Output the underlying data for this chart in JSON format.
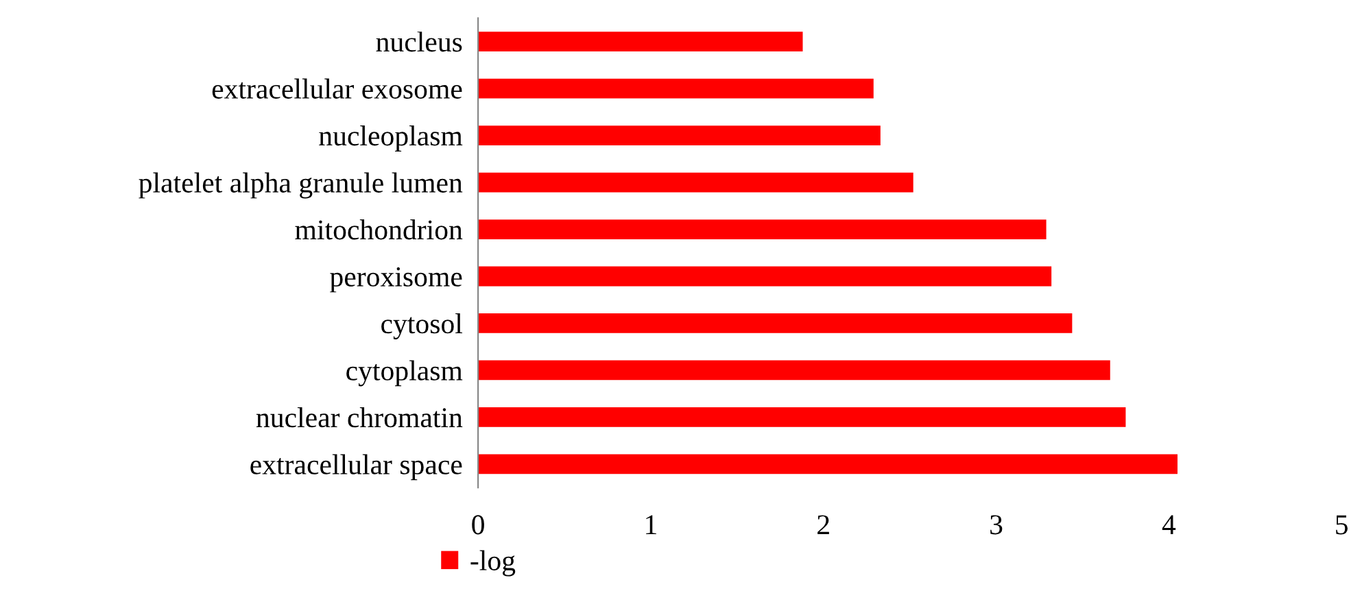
{
  "chart_data": {
    "type": "bar",
    "orientation": "horizontal",
    "categories": [
      "nucleus",
      "extracellular exosome",
      "nucleoplasm",
      "platelet alpha granule lumen",
      "mitochondrion",
      "peroxisome",
      "cytosol",
      "cytoplasm",
      "nuclear chromatin",
      "extracellular space"
    ],
    "series": [
      {
        "name": "-log",
        "color": "#ff0000",
        "values": [
          1.88,
          2.29,
          2.33,
          2.52,
          3.29,
          3.32,
          3.44,
          3.66,
          3.75,
          4.05
        ]
      }
    ],
    "xlim": [
      0,
      5
    ],
    "xticks": [
      0,
      1,
      2,
      3,
      4,
      5
    ],
    "grid": false,
    "legend": "bottom left"
  }
}
